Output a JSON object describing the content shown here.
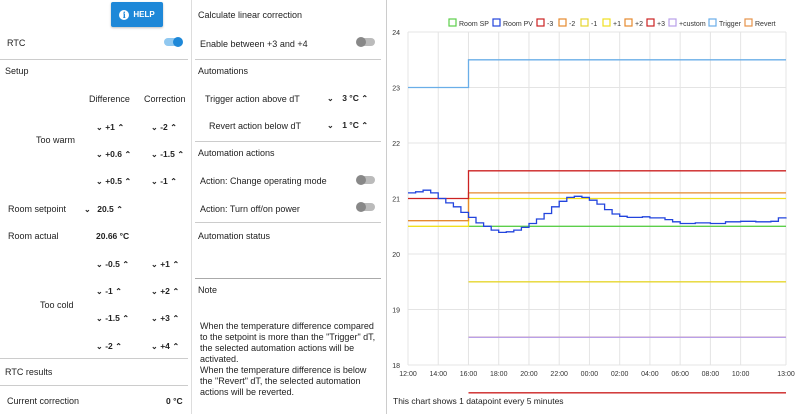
{
  "left": {
    "help_label": "HELP",
    "rtc_label": "RTC",
    "setup_label": "Setup",
    "col_difference": "Difference",
    "col_correction": "Correction",
    "too_warm_label": "Too warm",
    "warm_rows": [
      {
        "diff": "+1",
        "corr": "-2"
      },
      {
        "diff": "+0.6",
        "corr": "-1.5"
      },
      {
        "diff": "+0.5",
        "corr": "-1"
      }
    ],
    "room_setpoint_label": "Room setpoint",
    "room_setpoint_value": "20.5",
    "room_actual_label": "Room actual",
    "room_actual_value": "20.66 °C",
    "cold_rows": [
      {
        "diff": "-0.5",
        "corr": "+1"
      },
      {
        "diff": "-1",
        "corr": "+2"
      },
      {
        "diff": "-1.5",
        "corr": "+3"
      },
      {
        "diff": "-2",
        "corr": "+4"
      }
    ],
    "too_cold_label": "Too cold",
    "rtc_results_label": "RTC results",
    "current_correction_label": "Current correction",
    "current_correction_value": "0 °C"
  },
  "middle": {
    "linear_title": "Calculate linear correction",
    "enable_label": "Enable between +3 and +4",
    "automations_title": "Automations",
    "trigger_label": "Trigger action above dT",
    "trigger_value": "3 °C",
    "revert_label": "Revert action below dT",
    "revert_value": "1 °C",
    "actions_title": "Automation actions",
    "action1_label": "Action: Change operating mode",
    "action2_label": "Action: Turn off/on power",
    "status_title": "Automation status",
    "note_title": "Note",
    "note_text1": "When the temperature difference compared to the setpoint is more than the \"Trigger\" dT, the selected automation actions will be activated.",
    "note_text2": "When the temperature difference is below the \"Revert\" dT, the selected automation actions will be reverted."
  },
  "chart_caption": "This chart shows 1 datapoint every 5 minutes",
  "chart_data": {
    "type": "line",
    "legend_position": "top",
    "grid": true,
    "ylim": [
      18,
      24
    ],
    "yticks": [
      "18",
      "19",
      "20",
      "21",
      "22",
      "23",
      "24"
    ],
    "xticks": [
      "12:00",
      "14:00",
      "16:00",
      "18:00",
      "20:00",
      "22:00",
      "00:00",
      "02:00",
      "04:00",
      "06:00",
      "08:00",
      "10:00",
      "13:00"
    ],
    "xrange_hours": [
      12,
      37
    ],
    "series": [
      {
        "name": "Room SP",
        "color": "#5ccf4a",
        "x": [
          12,
          16,
          16,
          37
        ],
        "y": [
          null,
          null,
          20.5,
          20.5
        ]
      },
      {
        "name": "Room PV",
        "color": "#2244dd",
        "x": [
          12,
          12.5,
          13,
          13.5,
          14,
          14.5,
          15,
          15.5,
          16,
          16.5,
          17,
          17.5,
          18,
          18.5,
          19,
          19.5,
          20,
          20.5,
          21,
          21.5,
          22,
          22.5,
          23,
          23.5,
          24,
          24.5,
          25,
          25.5,
          26,
          26.5,
          27,
          27.5,
          28,
          28.5,
          29,
          29.5,
          30,
          31,
          32,
          33,
          34,
          35,
          36,
          36.5,
          37
        ],
        "y": [
          21.1,
          21.12,
          21.15,
          21.1,
          21.0,
          20.92,
          20.85,
          20.75,
          20.66,
          20.56,
          20.5,
          20.43,
          20.39,
          20.4,
          20.43,
          20.48,
          20.55,
          20.63,
          20.73,
          20.85,
          20.95,
          21.02,
          21.04,
          21.02,
          20.97,
          20.9,
          20.8,
          20.72,
          20.68,
          20.66,
          20.66,
          20.67,
          20.65,
          20.65,
          20.62,
          20.58,
          20.55,
          20.56,
          20.55,
          20.58,
          20.59,
          20.58,
          20.59,
          20.65,
          20.66
        ]
      },
      {
        "name": "-3",
        "color": "#cc2222",
        "x": [
          12,
          16,
          16,
          37
        ],
        "y": [
          null,
          null,
          17.5,
          17.5
        ]
      },
      {
        "name": "-2",
        "color": "#e68a2e",
        "x": [
          12,
          16,
          16,
          37
        ],
        "y": [
          null,
          null,
          18.5,
          18.5
        ]
      },
      {
        "name": "-1",
        "color": "#e6d62e",
        "x": [
          12,
          16,
          16,
          37
        ],
        "y": [
          null,
          null,
          19.5,
          19.5
        ]
      },
      {
        "name": "+1",
        "color": "#f0e020",
        "x": [
          12,
          16,
          16,
          37
        ],
        "y": [
          20.5,
          20.5,
          21.0,
          21.0
        ]
      },
      {
        "name": "+2",
        "color": "#e68a2e",
        "x": [
          12,
          16,
          16,
          37
        ],
        "y": [
          20.6,
          20.6,
          21.1,
          21.1
        ]
      },
      {
        "name": "+3",
        "color": "#cc2222",
        "x": [
          12,
          16,
          16,
          37
        ],
        "y": [
          21.0,
          21.0,
          21.5,
          21.5
        ]
      },
      {
        "name": "+custom",
        "color": "#b9a0e8",
        "x": [
          12,
          16,
          16,
          37
        ],
        "y": [
          null,
          null,
          18.5,
          18.5
        ]
      },
      {
        "name": "Trigger",
        "color": "#6aaee8",
        "x": [
          12,
          16,
          16,
          37
        ],
        "y": [
          23.0,
          23.0,
          23.5,
          23.5
        ]
      },
      {
        "name": "Revert",
        "color": "#e6924a",
        "x": [],
        "y": []
      }
    ]
  }
}
